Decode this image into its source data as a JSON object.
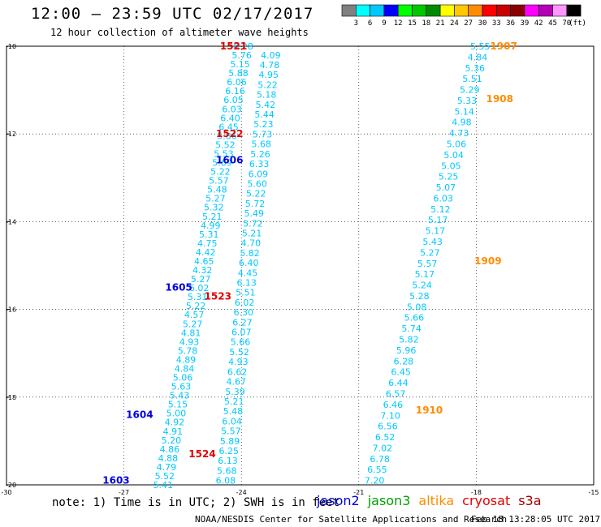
{
  "header": {
    "title": "12:00 – 23:59 UTC 02/17/2017",
    "subtitle": "12 hour collection of altimeter wave heights"
  },
  "colorbar": {
    "unit": "(ft)",
    "ticks": [
      "3",
      "6",
      "9",
      "12",
      "15",
      "18",
      "21",
      "24",
      "27",
      "30",
      "33",
      "36",
      "39",
      "42",
      "45",
      "70"
    ],
    "colors": [
      "#808080",
      "#00ffff",
      "#00c8ff",
      "#0000ff",
      "#00ff00",
      "#00c800",
      "#008c00",
      "#ffff00",
      "#ffc800",
      "#ff8c00",
      "#ff0000",
      "#c80000",
      "#8c0000",
      "#ff00ff",
      "#b400b4",
      "#ff96ff",
      "#000000"
    ]
  },
  "axes": {
    "lat_labels": [
      "-10",
      "-12",
      "-14",
      "-16",
      "-18",
      "-20"
    ],
    "lon_labels": [
      "-30",
      "-27",
      "-24",
      "-21",
      "-18",
      "-15"
    ]
  },
  "pass_labels": [
    {
      "text": "1521",
      "color": "#e00000",
      "lon": -24.2,
      "lat": -10.0
    },
    {
      "text": "1522",
      "color": "#e00000",
      "lon": -24.3,
      "lat": -12.0
    },
    {
      "text": "1606",
      "color": "#0000e0",
      "lon": -24.3,
      "lat": -12.6
    },
    {
      "text": "1605",
      "color": "#0000e0",
      "lon": -25.6,
      "lat": -15.5
    },
    {
      "text": "1523",
      "color": "#e00000",
      "lon": -24.6,
      "lat": -15.7
    },
    {
      "text": "1604",
      "color": "#0000e0",
      "lon": -26.6,
      "lat": -18.4
    },
    {
      "text": "1524",
      "color": "#e00000",
      "lon": -25.0,
      "lat": -19.3
    },
    {
      "text": "1603",
      "color": "#0000e0",
      "lon": -27.2,
      "lat": -19.9
    },
    {
      "text": "1907",
      "color": "#ff8c00",
      "lon": -17.3,
      "lat": -10.0
    },
    {
      "text": "1908",
      "color": "#ff8c00",
      "lon": -17.4,
      "lat": -11.2
    },
    {
      "text": "1909",
      "color": "#ff8c00",
      "lon": -17.7,
      "lat": -14.9
    },
    {
      "text": "1910",
      "color": "#ff8c00",
      "lon": -19.2,
      "lat": -18.3
    }
  ],
  "tracks": [
    {
      "name": "track-a",
      "color": "#00c8ff",
      "lon0": -23.95,
      "lat0": -10.0,
      "lon1": -26.0,
      "lat1": -20.0,
      "values": [
        "6.28",
        "5.76",
        "5.15",
        "5.88",
        "6.06",
        "6.16",
        "6.05",
        "6.03",
        "6.40",
        "6.45",
        "5.86",
        "5.52",
        "5.53",
        "5.69",
        "5.22",
        "5.57",
        "5.48",
        "5.27",
        "5.32",
        "5.21",
        "4.99",
        "5.31",
        "4.75",
        "4.42",
        "4.65",
        "4.32",
        "5.27",
        "6.02",
        "5.31",
        "5.22",
        "4.57",
        "5.27",
        "4.81",
        "4.93",
        "5.78",
        "4.89",
        "4.84",
        "5.06",
        "5.63",
        "5.43",
        "5.15",
        "5.00",
        "4.92",
        "4.91",
        "5.20",
        "4.86",
        "4.88",
        "4.79",
        "5.52",
        "5.41"
      ]
    },
    {
      "name": "track-b",
      "color": "#00c8ff",
      "lon0": -23.25,
      "lat0": -10.2,
      "lon1": -24.4,
      "lat1": -19.9,
      "values": [
        "4.09",
        "4.78",
        "4.95",
        "5.22",
        "5.18",
        "5.42",
        "5.44",
        "5.23",
        "5.73",
        "5.68",
        "5.26",
        "6.33",
        "6.09",
        "5.60",
        "5.22",
        "5.72",
        "5.49",
        "5.72",
        "5.21",
        "4.70",
        "5.82",
        "6.40",
        "4.45",
        "6.13",
        "5.51",
        "6.02",
        "6.30",
        "6.27",
        "6.07",
        "5.66",
        "5.52",
        "4.93",
        "6.62",
        "4.67",
        "5.39",
        "5.21",
        "5.48",
        "6.04",
        "5.57",
        "5.89",
        "6.25",
        "6.13",
        "5.68",
        "6.08"
      ]
    },
    {
      "name": "track-c",
      "color": "#00c8ff",
      "lon0": -17.9,
      "lat0": -10.0,
      "lon1": -20.6,
      "lat1": -19.9,
      "values": [
        "5.55",
        "4.84",
        "5.36",
        "5.51",
        "5.29",
        "5.33",
        "5.14",
        "4.98",
        "4.73",
        "5.06",
        "5.04",
        "5.05",
        "5.25",
        "5.07",
        "6.03",
        "5.12",
        "5.17",
        "5.17",
        "5.43",
        "5.27",
        "5.57",
        "5.17",
        "5.24",
        "5.28",
        "5.08",
        "5.66",
        "5.74",
        "5.82",
        "5.96",
        "6.28",
        "6.45",
        "6.44",
        "6.57",
        "6.46",
        "7.10",
        "6.56",
        "6.52",
        "7.02",
        "6.78",
        "6.55",
        "7.20"
      ]
    }
  ],
  "note": "note: 1) Time is in UTC; 2) SWH is in feet",
  "legend": [
    {
      "label": "jason2",
      "color": "#0000e0"
    },
    {
      "label": "jason3",
      "color": "#00a000"
    },
    {
      "label": "altika",
      "color": "#ff8c00"
    },
    {
      "label": "cryosat",
      "color": "#e00000"
    },
    {
      "label": "s3a",
      "color": "#a00000"
    }
  ],
  "credit": "NOAA/NESDIS Center for Satellite Applications and Research",
  "timestamp": "Feb 18 13:28:05 UTC 2017"
}
